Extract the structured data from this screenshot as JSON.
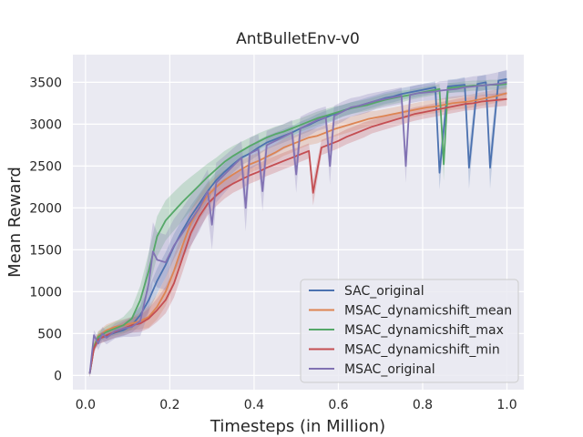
{
  "chart_data": {
    "type": "line",
    "title": "AntBulletEnv-v0",
    "xlabel": "Timesteps (in Million)",
    "ylabel": "Mean Reward",
    "xlim": [
      -0.03,
      1.04
    ],
    "ylim": [
      -170,
      3830
    ],
    "xticks": [
      0.0,
      0.2,
      0.4,
      0.6,
      0.8,
      1.0
    ],
    "xtick_labels": [
      "0.0",
      "0.2",
      "0.4",
      "0.6",
      "0.8",
      "1.0"
    ],
    "yticks": [
      0,
      500,
      1000,
      1500,
      2000,
      2500,
      3000,
      3500
    ],
    "ytick_labels": [
      "0",
      "500",
      "1000",
      "1500",
      "2000",
      "2500",
      "3000",
      "3500"
    ],
    "grid": true,
    "legend_position": "bottom-right",
    "background": "#eaeaf2",
    "series": [
      {
        "name": "SAC_original",
        "color": "#4c72b0",
        "x": [
          0.01,
          0.02,
          0.03,
          0.05,
          0.07,
          0.09,
          0.11,
          0.13,
          0.15,
          0.17,
          0.19,
          0.21,
          0.23,
          0.25,
          0.27,
          0.29,
          0.31,
          0.33,
          0.35,
          0.37,
          0.39,
          0.41,
          0.43,
          0.45,
          0.47,
          0.49,
          0.51,
          0.53,
          0.55,
          0.57,
          0.59,
          0.61,
          0.63,
          0.65,
          0.67,
          0.69,
          0.71,
          0.73,
          0.75,
          0.77,
          0.79,
          0.81,
          0.83,
          0.84,
          0.86,
          0.88,
          0.9,
          0.91,
          0.93,
          0.95,
          0.96,
          0.98,
          1.0
        ],
        "values": [
          20,
          330,
          440,
          470,
          510,
          540,
          600,
          720,
          900,
          1130,
          1320,
          1540,
          1730,
          1900,
          2050,
          2200,
          2330,
          2430,
          2520,
          2600,
          2650,
          2720,
          2780,
          2820,
          2860,
          2900,
          2950,
          2990,
          3040,
          3080,
          3120,
          3160,
          3190,
          3220,
          3250,
          3280,
          3310,
          3330,
          3360,
          3380,
          3400,
          3420,
          3440,
          2420,
          3450,
          3460,
          3470,
          2480,
          3480,
          3500,
          2480,
          3520,
          3540
        ],
        "band": [
          40,
          40,
          60,
          60,
          60,
          70,
          90,
          120,
          140,
          150,
          150,
          150,
          140,
          130,
          120,
          110,
          100,
          100,
          100,
          90,
          90,
          90,
          80,
          80,
          80,
          80,
          80,
          80,
          80,
          80,
          80,
          70,
          70,
          70,
          70,
          70,
          70,
          70,
          70,
          70,
          70,
          70,
          70,
          200,
          80,
          80,
          90,
          250,
          90,
          90,
          250,
          100,
          100
        ]
      },
      {
        "name": "MSAC_dynamicshift_mean",
        "color": "#dd8452",
        "x": [
          0.01,
          0.02,
          0.03,
          0.05,
          0.07,
          0.09,
          0.11,
          0.13,
          0.15,
          0.17,
          0.19,
          0.21,
          0.23,
          0.25,
          0.27,
          0.29,
          0.31,
          0.33,
          0.35,
          0.37,
          0.39,
          0.41,
          0.43,
          0.45,
          0.47,
          0.49,
          0.51,
          0.53,
          0.55,
          0.57,
          0.59,
          0.61,
          0.63,
          0.65,
          0.67,
          0.69,
          0.71,
          0.73,
          0.75,
          0.77,
          0.79,
          0.81,
          0.83,
          0.85,
          0.87,
          0.89,
          0.91,
          0.93,
          0.95,
          0.97,
          1.0
        ],
        "values": [
          20,
          350,
          470,
          540,
          580,
          600,
          620,
          650,
          700,
          820,
          1000,
          1250,
          1550,
          1820,
          2000,
          2150,
          2250,
          2330,
          2400,
          2460,
          2520,
          2560,
          2610,
          2660,
          2720,
          2760,
          2800,
          2840,
          2860,
          2900,
          2940,
          2970,
          3000,
          3030,
          3060,
          3080,
          3100,
          3120,
          3140,
          3160,
          3180,
          3200,
          3210,
          3230,
          3250,
          3260,
          3270,
          3290,
          3310,
          3330,
          3370
        ],
        "band": [
          40,
          50,
          60,
          70,
          70,
          70,
          80,
          100,
          130,
          150,
          170,
          180,
          170,
          160,
          150,
          140,
          130,
          120,
          110,
          110,
          100,
          100,
          100,
          100,
          100,
          100,
          90,
          90,
          90,
          90,
          90,
          90,
          90,
          90,
          90,
          80,
          80,
          80,
          80,
          80,
          80,
          80,
          80,
          80,
          80,
          80,
          80,
          80,
          80,
          80,
          80
        ]
      },
      {
        "name": "MSAC_dynamicshift_max",
        "color": "#55a868",
        "x": [
          0.01,
          0.02,
          0.03,
          0.05,
          0.07,
          0.09,
          0.11,
          0.13,
          0.15,
          0.17,
          0.19,
          0.21,
          0.23,
          0.25,
          0.27,
          0.29,
          0.31,
          0.33,
          0.35,
          0.37,
          0.39,
          0.41,
          0.43,
          0.45,
          0.47,
          0.49,
          0.51,
          0.53,
          0.55,
          0.57,
          0.59,
          0.61,
          0.63,
          0.65,
          0.67,
          0.69,
          0.71,
          0.73,
          0.75,
          0.77,
          0.79,
          0.81,
          0.82,
          0.84,
          0.85,
          0.86,
          0.88,
          0.9,
          0.92,
          0.94,
          0.96,
          0.98,
          1.0
        ],
        "values": [
          20,
          340,
          460,
          520,
          560,
          600,
          680,
          900,
          1250,
          1660,
          1850,
          1960,
          2070,
          2170,
          2270,
          2370,
          2460,
          2550,
          2620,
          2680,
          2740,
          2790,
          2840,
          2880,
          2910,
          2950,
          2990,
          3030,
          3070,
          3100,
          3130,
          3160,
          3190,
          3210,
          3230,
          3260,
          3290,
          3310,
          3330,
          3350,
          3370,
          3390,
          3400,
          3420,
          2520,
          3430,
          3440,
          3450,
          3460,
          3460,
          3470,
          3470,
          3480
        ],
        "band": [
          40,
          50,
          60,
          70,
          80,
          100,
          130,
          170,
          220,
          240,
          240,
          230,
          220,
          200,
          180,
          160,
          140,
          130,
          120,
          110,
          100,
          100,
          90,
          90,
          90,
          90,
          80,
          80,
          80,
          80,
          80,
          70,
          70,
          70,
          70,
          70,
          70,
          70,
          70,
          60,
          60,
          60,
          60,
          60,
          200,
          60,
          60,
          60,
          60,
          60,
          60,
          60,
          60
        ]
      },
      {
        "name": "MSAC_dynamicshift_min",
        "color": "#c44e52",
        "x": [
          0.01,
          0.02,
          0.03,
          0.05,
          0.07,
          0.09,
          0.11,
          0.13,
          0.15,
          0.17,
          0.19,
          0.21,
          0.23,
          0.25,
          0.27,
          0.29,
          0.31,
          0.33,
          0.35,
          0.37,
          0.39,
          0.41,
          0.43,
          0.45,
          0.47,
          0.49,
          0.51,
          0.53,
          0.54,
          0.56,
          0.58,
          0.6,
          0.62,
          0.64,
          0.66,
          0.68,
          0.7,
          0.72,
          0.74,
          0.76,
          0.78,
          0.8,
          0.82,
          0.84,
          0.86,
          0.88,
          0.9,
          0.92,
          0.94,
          0.96,
          0.98,
          1.0
        ],
        "values": [
          20,
          320,
          430,
          480,
          520,
          560,
          600,
          620,
          680,
          780,
          900,
          1100,
          1400,
          1700,
          1900,
          2050,
          2150,
          2230,
          2290,
          2340,
          2390,
          2430,
          2480,
          2520,
          2560,
          2600,
          2640,
          2680,
          2180,
          2720,
          2760,
          2800,
          2850,
          2890,
          2930,
          2970,
          3000,
          3030,
          3060,
          3090,
          3120,
          3140,
          3160,
          3180,
          3200,
          3220,
          3240,
          3250,
          3270,
          3280,
          3290,
          3300
        ],
        "band": [
          40,
          50,
          60,
          70,
          70,
          80,
          90,
          100,
          120,
          140,
          160,
          170,
          170,
          160,
          150,
          140,
          130,
          120,
          110,
          110,
          100,
          100,
          100,
          100,
          100,
          100,
          90,
          90,
          150,
          90,
          90,
          90,
          90,
          90,
          90,
          80,
          80,
          80,
          80,
          80,
          80,
          80,
          80,
          80,
          80,
          80,
          80,
          80,
          80,
          80,
          80,
          80
        ]
      },
      {
        "name": "MSAC_original",
        "color": "#8172b3",
        "x": [
          0.01,
          0.02,
          0.03,
          0.04,
          0.05,
          0.07,
          0.09,
          0.11,
          0.13,
          0.15,
          0.16,
          0.17,
          0.19,
          0.21,
          0.23,
          0.25,
          0.27,
          0.29,
          0.3,
          0.31,
          0.33,
          0.35,
          0.37,
          0.38,
          0.39,
          0.41,
          0.42,
          0.43,
          0.45,
          0.47,
          0.49,
          0.5,
          0.51,
          0.53,
          0.55,
          0.57,
          0.58,
          0.59,
          0.61,
          0.63,
          0.65,
          0.67,
          0.69,
          0.71,
          0.73,
          0.75,
          0.76,
          0.77,
          0.79,
          0.81,
          0.83,
          0.84,
          0.86,
          0.88,
          0.9,
          0.92,
          0.94,
          0.96,
          0.98,
          1.0
        ],
        "values": [
          20,
          480,
          380,
          500,
          450,
          530,
          560,
          580,
          650,
          1100,
          1480,
          1380,
          1350,
          1550,
          1700,
          1850,
          2000,
          2200,
          1800,
          2300,
          2400,
          2500,
          2600,
          2000,
          2650,
          2700,
          2200,
          2750,
          2800,
          2850,
          2900,
          2400,
          2950,
          3000,
          3050,
          3080,
          2500,
          3100,
          3150,
          3200,
          3220,
          3250,
          3280,
          3300,
          3320,
          3340,
          2500,
          3350,
          3370,
          3380,
          3390,
          3400,
          3410,
          3420,
          3440,
          3450,
          3460,
          3470,
          3480,
          3500
        ],
        "band": [
          40,
          60,
          80,
          80,
          80,
          90,
          100,
          120,
          180,
          350,
          350,
          330,
          330,
          320,
          300,
          300,
          280,
          260,
          300,
          240,
          220,
          210,
          200,
          280,
          190,
          180,
          240,
          170,
          160,
          150,
          150,
          220,
          140,
          140,
          130,
          130,
          220,
          120,
          120,
          110,
          110,
          110,
          100,
          100,
          100,
          100,
          200,
          100,
          100,
          100,
          100,
          110,
          110,
          110,
          110,
          120,
          120,
          130,
          140,
          150
        ]
      }
    ]
  }
}
